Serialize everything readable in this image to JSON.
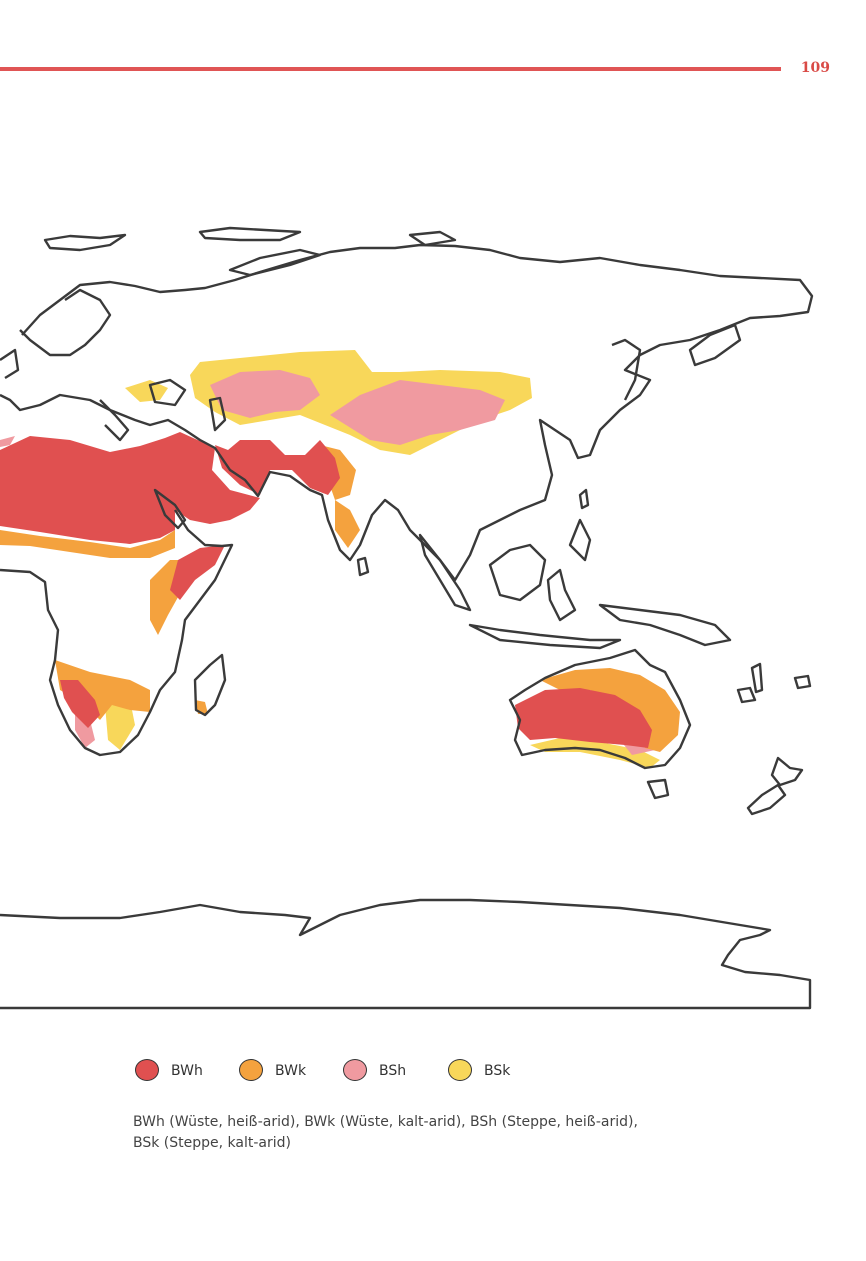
{
  "header": {
    "page_number": "109"
  },
  "colors": {
    "rule": "#e05555",
    "coast": "#3a3a3a",
    "land": "#ffffff"
  },
  "legend": [
    {
      "code": "BWh",
      "color": "#e05050"
    },
    {
      "code": "BWk",
      "color": "#f4a23e"
    },
    {
      "code": "BSh",
      "color": "#f09aa0"
    },
    {
      "code": "BSk",
      "color": "#f8d75a"
    }
  ],
  "caption": {
    "line1": "BWh (Wüste, heiß-arid), BWk (Wüste, kalt-arid), BSh (Steppe, heiß-arid),",
    "line2": "BSk (Steppe, kalt-arid)"
  }
}
